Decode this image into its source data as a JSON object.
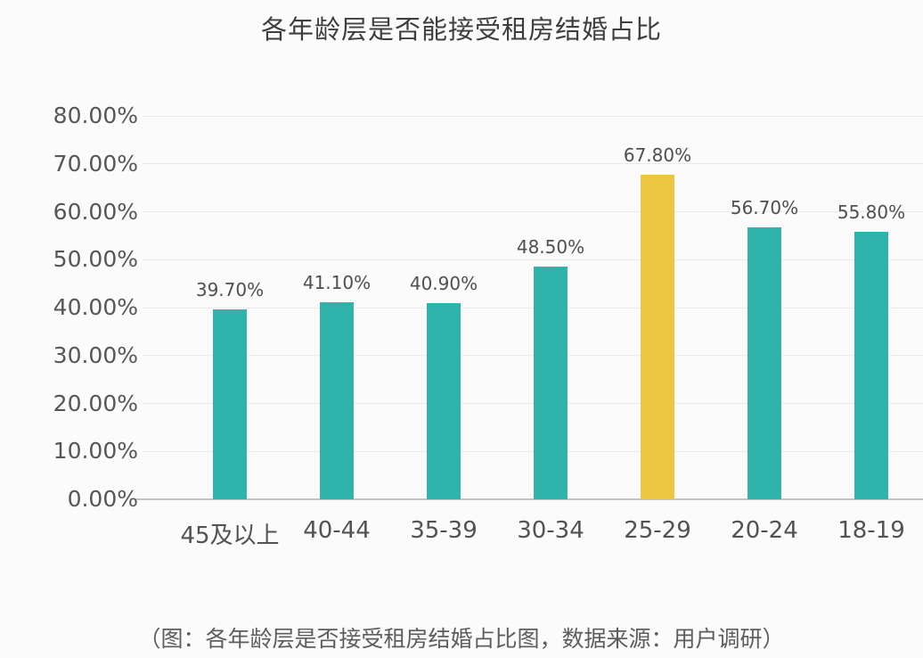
{
  "title": "各年龄层是否能接受租房结婚占比",
  "caption": "（图：各年龄层是否接受租房结婚占比图，数据来源：用户调研）",
  "colors": {
    "bar": "#2fb3ab",
    "highlight": "#ecc541",
    "gridline": "#e9e9e9",
    "axis_line": "#c3c3c3",
    "background": "#fbfbfb",
    "text": "#4f4f4f"
  },
  "chart_data": {
    "type": "bar",
    "title": "各年龄层是否能接受租房结婚占比",
    "categories": [
      "45及以上",
      "40-44",
      "35-39",
      "30-34",
      "25-29",
      "20-24",
      "18-19"
    ],
    "values": [
      39.7,
      41.1,
      40.9,
      48.5,
      67.8,
      56.7,
      55.8
    ],
    "value_labels": [
      "39.70%",
      "41.10%",
      "40.90%",
      "48.50%",
      "67.80%",
      "56.70%",
      "55.80%"
    ],
    "highlight_index": 4,
    "xlabel": "",
    "ylabel": "",
    "ylim": [
      0,
      80
    ],
    "ytick_step": 10,
    "ytick_labels": [
      "0.00%",
      "10.00%",
      "20.00%",
      "30.00%",
      "40.00%",
      "50.00%",
      "60.00%",
      "70.00%",
      "80.00%"
    ],
    "grid": true,
    "legend": null
  }
}
